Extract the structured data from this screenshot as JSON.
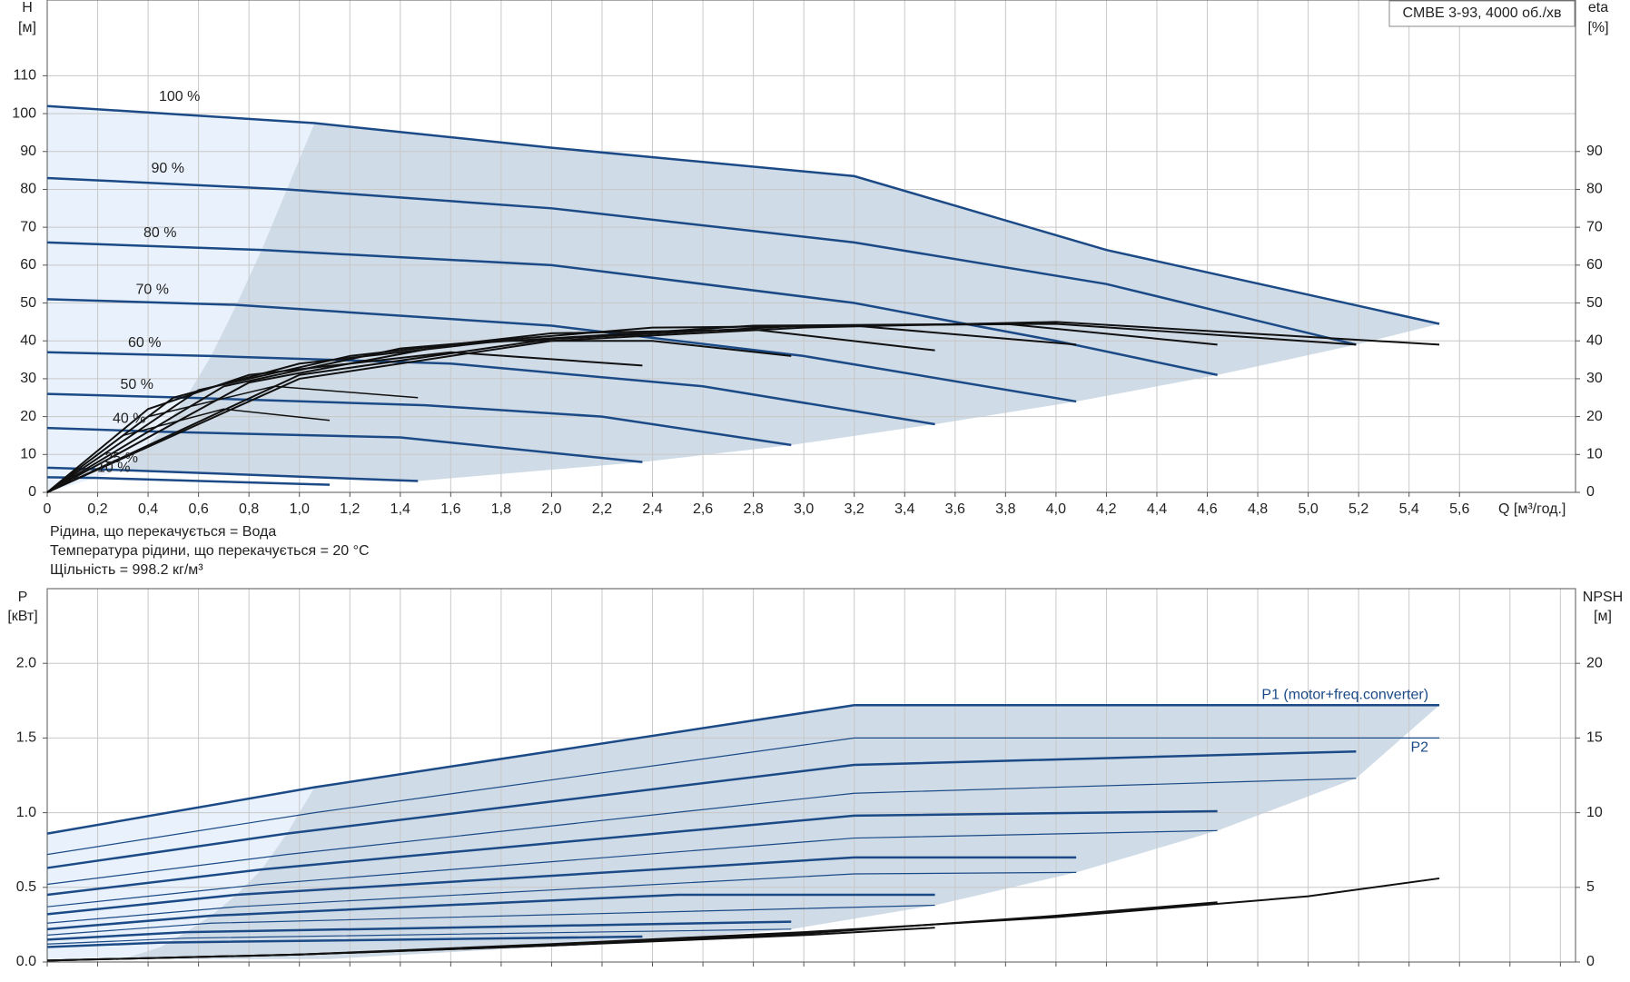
{
  "chart_data": [
    {
      "type": "line",
      "title": "CMBE 3-93, 4000 об./хв",
      "y_label": "H",
      "y_unit": "[м]",
      "y2_label": "eta",
      "y2_unit": "[%]",
      "x_label": "Q [м³/год.]",
      "notes": [
        "Рідина, що перекачується = Вода",
        "Температура рідини, що перекачується = 20 °C",
        "Щільність = 998.2 кг/м³"
      ],
      "series_label_side": "start",
      "grid": true,
      "xlim": [
        0,
        6.06
      ],
      "ylim": [
        0,
        130
      ],
      "y2lim": [
        0,
        130
      ],
      "xticks": [
        0,
        {
          "value": 0.2,
          "label": "0,2"
        },
        {
          "value": 0.4,
          "label": "0,4"
        },
        {
          "value": 0.6,
          "label": "0,6"
        },
        {
          "value": 0.8,
          "label": "0,8"
        },
        {
          "value": 1.0,
          "label": "1,0"
        },
        {
          "value": 1.2,
          "label": "1,2"
        },
        {
          "value": 1.4,
          "label": "1,4"
        },
        {
          "value": 1.6,
          "label": "1,6"
        },
        {
          "value": 1.8,
          "label": "1,8"
        },
        {
          "value": 2.0,
          "label": "2,0"
        },
        {
          "value": 2.2,
          "label": "2,2"
        },
        {
          "value": 2.4,
          "label": "2,4"
        },
        {
          "value": 2.6,
          "label": "2,6"
        },
        {
          "value": 2.8,
          "label": "2,8"
        },
        {
          "value": 3.0,
          "label": "3,0"
        },
        {
          "value": 3.2,
          "label": "3,2"
        },
        {
          "value": 3.4,
          "label": "3,4"
        },
        {
          "value": 3.6,
          "label": "3,6"
        },
        {
          "value": 3.8,
          "label": "3,8"
        },
        {
          "value": 4.0,
          "label": "4,0"
        },
        {
          "value": 4.2,
          "label": "4,2"
        },
        {
          "value": 4.4,
          "label": "4,4"
        },
        {
          "value": 4.6,
          "label": "4,6"
        },
        {
          "value": 4.8,
          "label": "4,8"
        },
        {
          "value": 5.0,
          "label": "5,0"
        },
        {
          "value": 5.2,
          "label": "5,2"
        },
        {
          "value": 5.4,
          "label": "5,4"
        },
        {
          "value": 5.6,
          "label": "5,6"
        }
      ],
      "yticks": [
        0,
        10,
        20,
        30,
        40,
        50,
        60,
        70,
        80,
        90,
        100,
        110
      ],
      "y2ticks": [
        0,
        10,
        20,
        30,
        40,
        50,
        60,
        70,
        80,
        90
      ],
      "areas": [
        {
          "color": "#e9f2fc",
          "x": [
            0,
            1.06,
            0.95,
            0.85,
            0.75,
            0.65,
            0.55,
            0.45,
            0.3,
            0
          ],
          "y": [
            102,
            97.5,
            80,
            64,
            49.5,
            36,
            25,
            16,
            6,
            0
          ]
        },
        {
          "color": "#cfdbe7",
          "x": [
            1.06,
            2,
            3.2,
            4.2,
            5.52,
            5.19,
            4.64,
            4.08,
            3.52,
            2.95,
            2.36,
            1.47,
            0.3,
            0.45,
            0.55,
            0.65,
            0.75,
            0.85,
            0.95
          ],
          "y": [
            97.5,
            91,
            83.5,
            64,
            44.5,
            39,
            31,
            24,
            18,
            12.5,
            8,
            3,
            6,
            16,
            25,
            36,
            49.5,
            64,
            80
          ]
        }
      ],
      "series": [
        {
          "name": "100 %",
          "color": "#1b4a86",
          "width": 2.5,
          "x": [
            0,
            1.06,
            2,
            3.2,
            4.2,
            5.52
          ],
          "y": [
            102,
            97.5,
            91,
            83.5,
            64,
            44.5
          ]
        },
        {
          "name": "90 %",
          "color": "#1b4a86",
          "width": 2.5,
          "x": [
            0,
            0.95,
            2,
            3.2,
            4.2,
            5.19
          ],
          "y": [
            83,
            80,
            75,
            66,
            55,
            39
          ]
        },
        {
          "name": "80 %",
          "color": "#1b4a86",
          "width": 2.5,
          "x": [
            0,
            0.85,
            2,
            3.2,
            4,
            4.64
          ],
          "y": [
            66,
            64,
            60,
            50,
            40,
            31
          ]
        },
        {
          "name": "70 %",
          "color": "#1b4a86",
          "width": 2.5,
          "x": [
            0,
            0.75,
            2,
            3,
            4.08
          ],
          "y": [
            51,
            49.5,
            44,
            36,
            24
          ]
        },
        {
          "name": "60 %",
          "color": "#1b4a86",
          "width": 2.5,
          "x": [
            0,
            0.65,
            1.6,
            2.6,
            3.52
          ],
          "y": [
            37,
            36,
            34,
            28,
            18
          ]
        },
        {
          "name": "50 %",
          "color": "#1b4a86",
          "width": 2.5,
          "x": [
            0,
            0.55,
            1.5,
            2.2,
            2.95
          ],
          "y": [
            26,
            25,
            23,
            20,
            12.5
          ]
        },
        {
          "name": "40 %",
          "color": "#1b4a86",
          "width": 2.5,
          "x": [
            0,
            0.45,
            1.4,
            2.36
          ],
          "y": [
            17,
            16,
            14.5,
            8
          ]
        },
        {
          "name": "25 %",
          "color": "#1b4a86",
          "width": 2.5,
          "x": [
            0,
            0.25,
            1.47
          ],
          "y": [
            6.5,
            6,
            3
          ]
        },
        {
          "name": "10 %",
          "color": "#1b4a86",
          "width": 2.5,
          "x": [
            0,
            0.2,
            1.12
          ],
          "y": [
            4,
            3.8,
            2
          ]
        },
        {
          "axis": "y2",
          "color": "#111111",
          "width": 2,
          "x": [
            0,
            1,
            2,
            3,
            4,
            5.52
          ],
          "y": [
            0,
            30,
            40,
            43.5,
            45,
            39
          ]
        },
        {
          "axis": "y2",
          "color": "#111111",
          "width": 2,
          "x": [
            0,
            1,
            2,
            3,
            4,
            5.19
          ],
          "y": [
            0,
            31,
            40.5,
            44,
            44.5,
            39
          ]
        },
        {
          "axis": "y2",
          "color": "#111111",
          "width": 2,
          "x": [
            0,
            0.8,
            1.6,
            2.8,
            3.8,
            4.64
          ],
          "y": [
            0,
            29,
            39,
            44,
            44.5,
            39
          ]
        },
        {
          "axis": "y2",
          "color": "#111111",
          "width": 2,
          "x": [
            0,
            0.7,
            1.4,
            2.4,
            3.2,
            4.08
          ],
          "y": [
            0,
            28,
            38,
            43.5,
            44,
            39
          ]
        },
        {
          "axis": "y2",
          "color": "#111111",
          "width": 2,
          "x": [
            0,
            0.6,
            1.2,
            2,
            2.8,
            3.52
          ],
          "y": [
            0,
            27,
            36,
            42,
            43,
            37.5
          ]
        },
        {
          "axis": "y2",
          "color": "#111111",
          "width": 2,
          "x": [
            0,
            0.5,
            1,
            1.8,
            2.4,
            2.95
          ],
          "y": [
            0,
            25,
            34,
            40,
            40,
            36
          ]
        },
        {
          "axis": "y2",
          "color": "#111111",
          "width": 2,
          "x": [
            0,
            0.4,
            0.8,
            1.6,
            2.36
          ],
          "y": [
            0,
            22,
            31,
            37,
            33.5
          ]
        },
        {
          "axis": "y2",
          "color": "#111111",
          "width": 1.5,
          "x": [
            0,
            0.4,
            0.9,
            1.47
          ],
          "y": [
            0,
            20,
            28,
            25
          ]
        },
        {
          "axis": "y2",
          "color": "#111111",
          "width": 1.5,
          "x": [
            0,
            0.3,
            0.7,
            1.12
          ],
          "y": [
            0,
            15,
            22,
            19
          ]
        }
      ]
    },
    {
      "type": "line",
      "y_label": "P",
      "y_unit": "[кВт]",
      "y2_label": "NPSH",
      "y2_unit": "[м]",
      "series_label_side": "end",
      "grid": true,
      "xtick_labels": false,
      "xlim": [
        0,
        6.06
      ],
      "ylim": [
        0,
        2.5
      ],
      "y2lim": [
        0,
        25
      ],
      "xticks": [
        0,
        0.2,
        0.4,
        0.6,
        0.8,
        1.0,
        1.2,
        1.4,
        1.6,
        1.8,
        2.0,
        2.2,
        2.4,
        2.6,
        2.8,
        3.0,
        3.2,
        3.4,
        3.6,
        3.8,
        4.0,
        4.2,
        4.4,
        4.6,
        4.8,
        5.0,
        5.2,
        5.4,
        5.6,
        5.8,
        6.0
      ],
      "yticks": [
        {
          "value": 0,
          "label": "0.0"
        },
        0.5,
        {
          "value": 1,
          "label": "1.0"
        },
        1.5,
        {
          "value": 2,
          "label": "2.0"
        }
      ],
      "y2ticks": [
        0,
        5,
        10,
        15,
        20
      ],
      "areas": [
        {
          "color": "#e9f2fc",
          "x": [
            0,
            1.06,
            0.95,
            0.85,
            0.75,
            0.65,
            0.55,
            0.45,
            0.3,
            0
          ],
          "y": [
            0.86,
            1.17,
            0.86,
            0.62,
            0.45,
            0.31,
            0.2,
            0.1,
            0.02,
            0
          ]
        },
        {
          "color": "#cfdbe7",
          "x": [
            1.06,
            3.2,
            5.52,
            5.19,
            4.64,
            4.08,
            3.52,
            2.95,
            2.36,
            1.12,
            0.3,
            0.45,
            0.55,
            0.65,
            0.75,
            0.85,
            0.95
          ],
          "y": [
            1.17,
            1.72,
            1.72,
            1.23,
            0.88,
            0.6,
            0.38,
            0.22,
            0.14,
            0.02,
            0.02,
            0.1,
            0.2,
            0.31,
            0.45,
            0.62,
            0.86
          ]
        }
      ],
      "series": [
        {
          "name": "P1 (motor+freq.converter)",
          "color": "#1b4a86",
          "width": 2.5,
          "x": [
            0,
            1.06,
            3.2,
            5.52
          ],
          "y": [
            0.86,
            1.17,
            1.72,
            1.72
          ]
        },
        {
          "name": "P2",
          "color": "#1b4a86",
          "width": 1.2,
          "x": [
            0,
            1.06,
            3.2,
            5.52
          ],
          "y": [
            0.72,
            1.0,
            1.5,
            1.5
          ]
        },
        {
          "color": "#1b4a86",
          "width": 2.5,
          "x": [
            0,
            0.95,
            3.2,
            5.19
          ],
          "y": [
            0.63,
            0.86,
            1.32,
            1.41
          ]
        },
        {
          "color": "#1b4a86",
          "width": 1.2,
          "x": [
            0,
            0.95,
            3.2,
            5.19
          ],
          "y": [
            0.52,
            0.72,
            1.13,
            1.23
          ]
        },
        {
          "color": "#1b4a86",
          "width": 2.5,
          "x": [
            0,
            0.85,
            3.2,
            4.64
          ],
          "y": [
            0.45,
            0.62,
            0.98,
            1.01
          ]
        },
        {
          "color": "#1b4a86",
          "width": 1.2,
          "x": [
            0,
            0.85,
            3.2,
            4.64
          ],
          "y": [
            0.37,
            0.52,
            0.83,
            0.88
          ]
        },
        {
          "color": "#1b4a86",
          "width": 2.5,
          "x": [
            0,
            0.75,
            3.2,
            4.08
          ],
          "y": [
            0.32,
            0.45,
            0.7,
            0.7
          ]
        },
        {
          "color": "#1b4a86",
          "width": 1.2,
          "x": [
            0,
            0.75,
            3.2,
            4.08
          ],
          "y": [
            0.26,
            0.37,
            0.59,
            0.6
          ]
        },
        {
          "color": "#1b4a86",
          "width": 2.5,
          "x": [
            0,
            0.65,
            2.5,
            3.52
          ],
          "y": [
            0.22,
            0.31,
            0.45,
            0.45
          ]
        },
        {
          "color": "#1b4a86",
          "width": 1.2,
          "x": [
            0,
            0.65,
            3.52
          ],
          "y": [
            0.18,
            0.26,
            0.38
          ]
        },
        {
          "color": "#1b4a86",
          "width": 2.5,
          "x": [
            0,
            0.55,
            2.95
          ],
          "y": [
            0.15,
            0.2,
            0.27
          ]
        },
        {
          "color": "#1b4a86",
          "width": 1.2,
          "x": [
            0,
            0.55,
            2.95
          ],
          "y": [
            0.12,
            0.16,
            0.22
          ]
        },
        {
          "color": "#1b4a86",
          "width": 2.5,
          "x": [
            0,
            0.45,
            2.36
          ],
          "y": [
            0.1,
            0.13,
            0.17
          ]
        },
        {
          "axis": "y2",
          "color": "#111111",
          "width": 2,
          "x": [
            0,
            1,
            2,
            3,
            4,
            5,
            5.52
          ],
          "y": [
            0.1,
            0.5,
            1.2,
            2,
            3,
            4.4,
            5.6
          ]
        },
        {
          "axis": "y2",
          "color": "#111111",
          "width": 2,
          "x": [
            0,
            1,
            2,
            3,
            4,
            4.64
          ],
          "y": [
            0.1,
            0.5,
            1.1,
            1.9,
            3.1,
            4
          ]
        },
        {
          "axis": "y2",
          "color": "#111111",
          "width": 2,
          "x": [
            0,
            1,
            2,
            3,
            3.52
          ],
          "y": [
            0.1,
            0.5,
            1.1,
            1.8,
            2.3
          ]
        }
      ]
    }
  ]
}
